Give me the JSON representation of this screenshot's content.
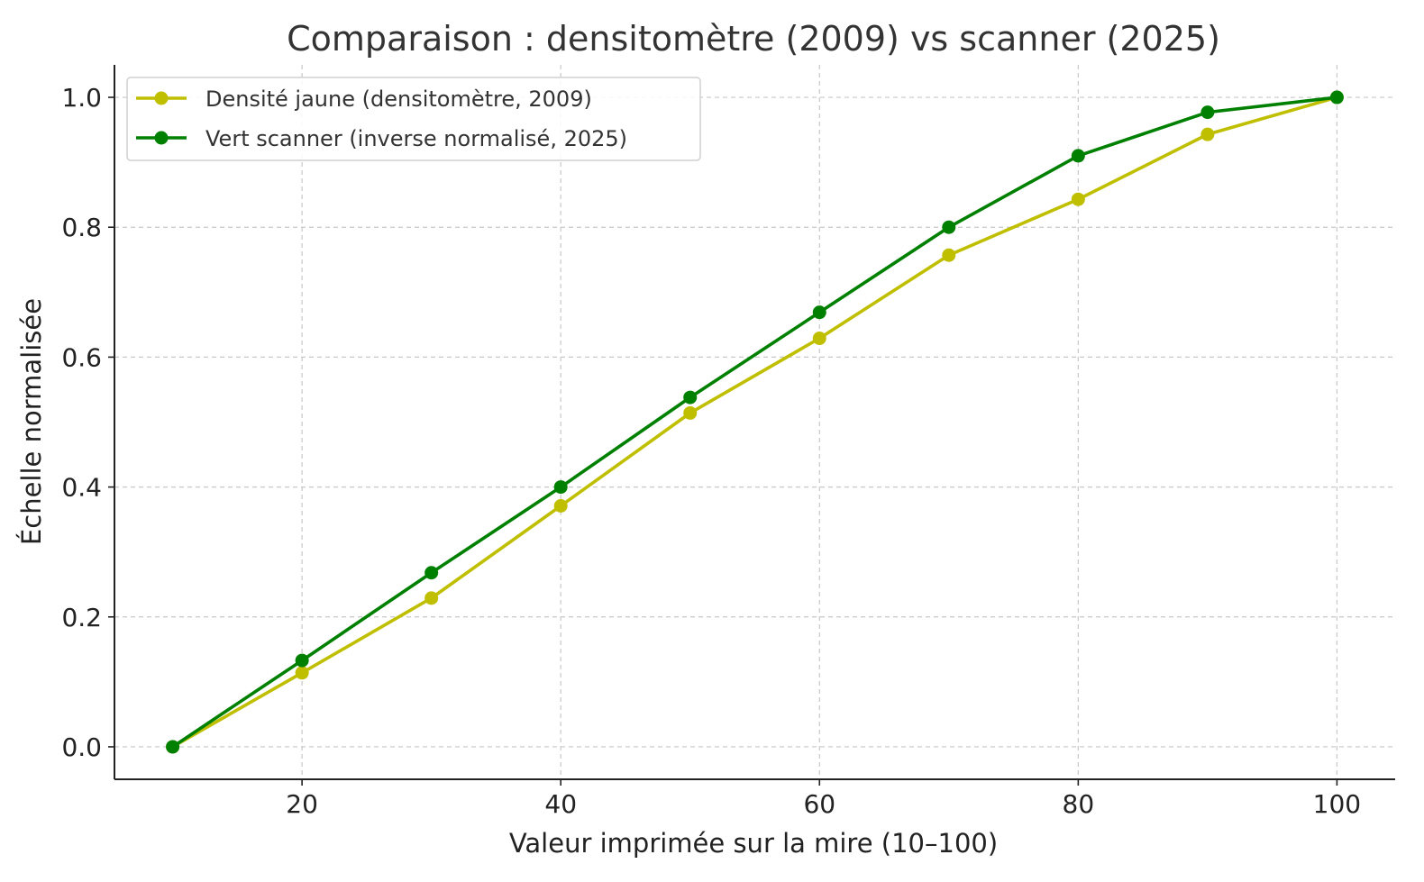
{
  "chart_data": {
    "type": "line",
    "title": "Comparaison : densitomètre (2009) vs scanner (2025)",
    "xlabel": "Valeur imprimée sur la mire (10–100)",
    "ylabel": "Échelle normalisée",
    "xlim": [
      5.5,
      104.5
    ],
    "ylim": [
      -0.05,
      1.05
    ],
    "x_ticks": [
      20,
      40,
      60,
      80,
      100
    ],
    "y_ticks": [
      0.0,
      0.2,
      0.4,
      0.6,
      0.8,
      1.0
    ],
    "x_tick_labels": [
      "20",
      "40",
      "60",
      "80",
      "100"
    ],
    "y_tick_labels": [
      "0.0",
      "0.2",
      "0.4",
      "0.6",
      "0.8",
      "1.0"
    ],
    "grid": true,
    "legend_position": "top-left",
    "x": [
      10,
      20,
      30,
      40,
      50,
      60,
      70,
      80,
      90,
      100
    ],
    "series": [
      {
        "name": "Densité jaune (densitomètre, 2009)",
        "color": "#bfbf00",
        "values": [
          0.0,
          0.114,
          0.229,
          0.371,
          0.514,
          0.629,
          0.757,
          0.843,
          0.943,
          1.0
        ]
      },
      {
        "name": "Vert scanner (inverse normalisé, 2025)",
        "color": "#008000",
        "values": [
          0.0,
          0.133,
          0.268,
          0.4,
          0.538,
          0.669,
          0.8,
          0.91,
          0.977,
          1.0
        ]
      }
    ]
  }
}
